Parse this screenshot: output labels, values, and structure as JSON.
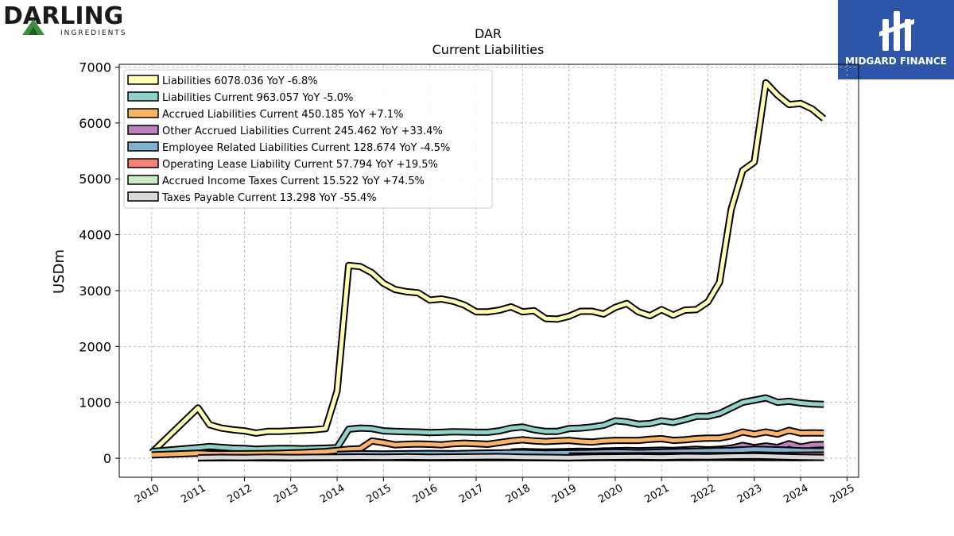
{
  "brand_left": {
    "name": "DARLING",
    "sub": "INGREDIENTS"
  },
  "brand_right": {
    "name": "MIDGARD FINANCE"
  },
  "chart_data": {
    "type": "area",
    "title": "DAR",
    "subtitle": "Current  Liabilities",
    "ylabel": "USDm",
    "ylim": [
      -340,
      7050
    ],
    "xlim": [
      2009.3,
      2025.25
    ],
    "yticks": [
      0,
      1000,
      2000,
      3000,
      4000,
      5000,
      6000,
      7000
    ],
    "xticks": [
      2010,
      2011,
      2012,
      2013,
      2014,
      2015,
      2016,
      2017,
      2018,
      2019,
      2020,
      2021,
      2022,
      2023,
      2024,
      2025
    ],
    "grid": true,
    "legend_position": "top-left",
    "series": [
      {
        "name": "Liabilities",
        "legend": "Liabilities  6078.036 YoY -6.8%",
        "color": "#ffffb3",
        "x": [
          2010.0,
          2011.0,
          2011.25,
          2011.5,
          2011.75,
          2012.0,
          2012.25,
          2012.5,
          2012.75,
          2013.0,
          2013.25,
          2013.5,
          2013.75,
          2014.0,
          2014.25,
          2014.5,
          2014.75,
          2015.0,
          2015.25,
          2015.5,
          2015.75,
          2016.0,
          2016.25,
          2016.5,
          2016.75,
          2017.0,
          2017.25,
          2017.5,
          2017.75,
          2018.0,
          2018.25,
          2018.5,
          2018.75,
          2019.0,
          2019.25,
          2019.5,
          2019.75,
          2020.0,
          2020.25,
          2020.5,
          2020.75,
          2021.0,
          2021.25,
          2021.5,
          2021.75,
          2022.0,
          2022.25,
          2022.5,
          2022.75,
          2023.0,
          2023.25,
          2023.5,
          2023.75,
          2024.0,
          2024.25,
          2024.5
        ],
        "values": [
          100,
          900,
          600,
          540,
          510,
          490,
          450,
          480,
          480,
          490,
          500,
          510,
          530,
          1200,
          3450,
          3430,
          3320,
          3130,
          3020,
          2980,
          2960,
          2830,
          2850,
          2810,
          2740,
          2620,
          2620,
          2650,
          2710,
          2620,
          2640,
          2500,
          2490,
          2540,
          2630,
          2630,
          2580,
          2700,
          2770,
          2620,
          2550,
          2660,
          2560,
          2650,
          2660,
          2800,
          3150,
          4450,
          5150,
          5300,
          6720,
          6500,
          6330,
          6350,
          6250,
          6078
        ]
      },
      {
        "name": "Liabilities Current",
        "legend": "Liabilities Current  963.057 YoY -5.0%",
        "color": "#8dd3c7",
        "x": [
          2010.0,
          2011.0,
          2011.25,
          2011.5,
          2011.75,
          2012.0,
          2012.25,
          2012.5,
          2012.75,
          2013.0,
          2013.25,
          2013.5,
          2013.75,
          2014.0,
          2014.25,
          2014.5,
          2014.75,
          2015.0,
          2015.25,
          2015.5,
          2015.75,
          2016.0,
          2016.25,
          2016.5,
          2016.75,
          2017.0,
          2017.25,
          2017.5,
          2017.75,
          2018.0,
          2018.25,
          2018.5,
          2018.75,
          2019.0,
          2019.25,
          2019.5,
          2019.75,
          2020.0,
          2020.25,
          2020.5,
          2020.75,
          2021.0,
          2021.25,
          2021.5,
          2021.75,
          2022.0,
          2022.25,
          2022.5,
          2022.75,
          2023.0,
          2023.25,
          2023.5,
          2023.75,
          2024.0,
          2024.25,
          2024.5
        ],
        "values": [
          120,
          190,
          210,
          195,
          180,
          175,
          160,
          170,
          175,
          175,
          170,
          175,
          180,
          190,
          520,
          540,
          530,
          490,
          480,
          475,
          470,
          460,
          465,
          475,
          470,
          465,
          465,
          490,
          540,
          560,
          510,
          480,
          480,
          530,
          540,
          560,
          590,
          670,
          650,
          610,
          620,
          670,
          640,
          690,
          750,
          750,
          800,
          900,
          1000,
          1040,
          1080,
          1000,
          1020,
          990,
          970,
          963
        ]
      },
      {
        "name": "Accrued Liabilities Current",
        "legend": "Accrued Liabilities Current  450.185 YoY +7.1%",
        "color": "#fdb462",
        "x": [
          2010.0,
          2011.0,
          2011.25,
          2011.5,
          2011.75,
          2012.0,
          2012.25,
          2012.5,
          2012.75,
          2013.0,
          2013.25,
          2013.5,
          2013.75,
          2014.0,
          2014.25,
          2014.5,
          2014.75,
          2015.0,
          2015.25,
          2015.5,
          2015.75,
          2016.0,
          2016.25,
          2016.5,
          2016.75,
          2017.0,
          2017.25,
          2017.5,
          2017.75,
          2018.0,
          2018.25,
          2018.5,
          2018.75,
          2019.0,
          2019.25,
          2019.5,
          2019.75,
          2020.0,
          2020.25,
          2020.5,
          2020.75,
          2021.0,
          2021.25,
          2021.5,
          2021.75,
          2022.0,
          2022.25,
          2022.5,
          2022.75,
          2023.0,
          2023.25,
          2023.5,
          2023.75,
          2024.0,
          2024.25,
          2024.5
        ],
        "values": [
          60,
          90,
          80,
          78,
          80,
          80,
          82,
          85,
          88,
          95,
          100,
          110,
          120,
          140,
          160,
          170,
          310,
          280,
          240,
          250,
          255,
          250,
          240,
          260,
          270,
          260,
          250,
          280,
          310,
          330,
          310,
          300,
          310,
          320,
          300,
          290,
          310,
          320,
          320,
          320,
          340,
          350,
          320,
          330,
          350,
          360,
          360,
          400,
          470,
          430,
          470,
          430,
          500,
          450,
          455,
          450
        ]
      },
      {
        "name": "Other Accrued Liabilities Current",
        "legend": "Other Accrued Liabilities Current  245.462 YoY +33.4%",
        "color": "#bc80bd",
        "x": [
          2017.75,
          2018.0,
          2018.25,
          2018.5,
          2018.75,
          2019.0,
          2019.25,
          2019.5,
          2019.75,
          2020.0,
          2020.25,
          2020.5,
          2020.75,
          2021.0,
          2021.25,
          2021.5,
          2021.75,
          2022.0,
          2022.25,
          2022.5,
          2022.75,
          2023.0,
          2023.25,
          2023.5,
          2023.75,
          2024.0,
          2024.25,
          2024.5
        ],
        "values": [
          110,
          120,
          115,
          110,
          115,
          120,
          125,
          120,
          130,
          135,
          140,
          135,
          140,
          145,
          140,
          150,
          160,
          150,
          160,
          180,
          230,
          190,
          220,
          190,
          260,
          200,
          240,
          245
        ]
      },
      {
        "name": "Employee Related Liabilities Current",
        "legend": "Employee Related Liabilities Current  128.674 YoY -4.5%",
        "color": "#80b1d3",
        "x": [
          2014.0,
          2014.5,
          2015.0,
          2015.5,
          2016.0,
          2016.5,
          2017.0,
          2017.5,
          2018.0,
          2018.5,
          2019.0,
          2019.5,
          2020.0,
          2020.5,
          2021.0,
          2021.5,
          2022.0,
          2022.5,
          2023.0,
          2023.5,
          2024.0,
          2024.5
        ],
        "values": [
          70,
          80,
          75,
          80,
          85,
          80,
          90,
          95,
          100,
          90,
          95,
          100,
          110,
          100,
          110,
          120,
          130,
          140,
          160,
          150,
          135,
          129
        ]
      },
      {
        "name": "Operating Lease Liability Current",
        "legend": "Operating Lease Liability Current  57.794 YoY +19.5%",
        "color": "#fb8072",
        "x": [
          2019.0,
          2019.5,
          2020.0,
          2020.5,
          2021.0,
          2021.5,
          2022.0,
          2022.5,
          2023.0,
          2023.5,
          2024.0,
          2024.5
        ],
        "values": [
          40,
          42,
          44,
          45,
          45,
          46,
          47,
          48,
          50,
          52,
          55,
          58
        ]
      },
      {
        "name": "Accrued Income Taxes Current",
        "legend": "Accrued Income Taxes Current  15.522 YoY +74.5%",
        "color": "#ccebc5",
        "x": [
          2011.0,
          2012.0,
          2013.0,
          2014.0,
          2015.0,
          2016.0,
          2017.0,
          2018.0,
          2019.0,
          2020.0,
          2021.0,
          2022.0,
          2023.0,
          2024.0,
          2024.5
        ],
        "values": [
          5,
          8,
          6,
          10,
          12,
          8,
          10,
          9,
          7,
          12,
          10,
          14,
          12,
          9,
          15.5
        ]
      },
      {
        "name": "Taxes Payable Current",
        "legend": "Taxes Payable Current  13.298 YoY -55.4%",
        "color": "#d9d9d9",
        "x": [
          2011.0,
          2011.5,
          2012.0,
          2012.5,
          2013.0,
          2013.5,
          2014.0,
          2014.5,
          2015.0,
          2015.5,
          2016.0,
          2016.5,
          2017.0,
          2017.5,
          2018.0,
          2018.5,
          2019.0,
          2019.5,
          2020.0,
          2020.5,
          2021.0,
          2021.5,
          2022.0,
          2022.5,
          2023.0,
          2023.5,
          2024.0,
          2024.5
        ],
        "values": [
          10,
          15,
          12,
          18,
          14,
          16,
          20,
          22,
          18,
          25,
          20,
          22,
          25,
          30,
          20,
          15,
          10,
          18,
          22,
          25,
          20,
          30,
          25,
          35,
          40,
          30,
          20,
          13.3
        ]
      }
    ]
  }
}
